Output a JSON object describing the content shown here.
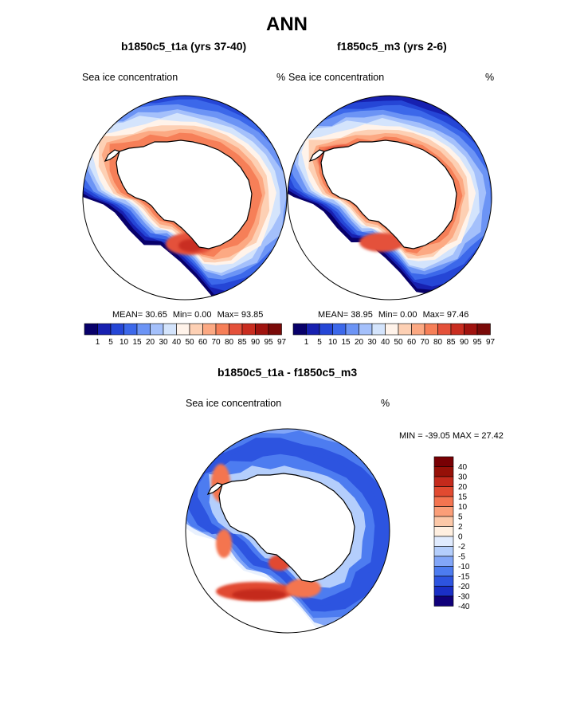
{
  "figure": {
    "title": "ANN"
  },
  "colors": {
    "seq": [
      "#08006a",
      "#1720b0",
      "#2546d6",
      "#3c68ea",
      "#6c94f5",
      "#a4c0fb",
      "#d4e4fc",
      "#fff3ea",
      "#fdd0b4",
      "#fca983",
      "#f67f58",
      "#e4513a",
      "#c92d20",
      "#a0130f",
      "#7a0a08"
    ],
    "div": [
      "#10007a",
      "#1a2fc6",
      "#2d54e0",
      "#4d7cf0",
      "#82a6f8",
      "#b4cefc",
      "#e0ebfe",
      "#ffefe0",
      "#fcc8a8",
      "#fb9e78",
      "#f47450",
      "#e14a30",
      "#c42a1c",
      "#961008",
      "#780004"
    ]
  },
  "chart_data": [
    {
      "type": "heatmap",
      "title": "b1850c5_t1a (yrs 37-40)",
      "variable": "Sea ice concentration",
      "units": "%",
      "projection": "south-polar-stereographic",
      "stats": {
        "mean_label": "MEAN=",
        "mean": "30.65",
        "min_label": "Min=",
        "min": "0.00",
        "max_label": "Max=",
        "max": "93.85"
      },
      "levels": [
        "1",
        "5",
        "10",
        "15",
        "20",
        "30",
        "40",
        "50",
        "60",
        "70",
        "80",
        "85",
        "90",
        "95",
        "97"
      ]
    },
    {
      "type": "heatmap",
      "title": "f1850c5_m3 (yrs 2-6)",
      "variable": "Sea ice concentration",
      "units": "%",
      "projection": "south-polar-stereographic",
      "stats": {
        "mean_label": "MEAN=",
        "mean": "38.95",
        "min_label": "Min=",
        "min": "0.00",
        "max_label": "Max=",
        "max": "97.46"
      },
      "levels": [
        "1",
        "5",
        "10",
        "15",
        "20",
        "30",
        "40",
        "50",
        "60",
        "70",
        "80",
        "85",
        "90",
        "95",
        "97"
      ]
    },
    {
      "type": "heatmap",
      "title": "b1850c5_t1a - f1850c5_m3",
      "variable": "Sea ice concentration",
      "units": "%",
      "projection": "south-polar-stereographic",
      "stats": {
        "min_label": "MIN =",
        "min": "-39.05",
        "max_label": "MAX =",
        "max": "27.42"
      },
      "levels": [
        "40",
        "30",
        "20",
        "15",
        "10",
        "5",
        "2",
        "0",
        "-2",
        "-5",
        "-10",
        "-15",
        "-20",
        "-30",
        "-40"
      ]
    }
  ]
}
